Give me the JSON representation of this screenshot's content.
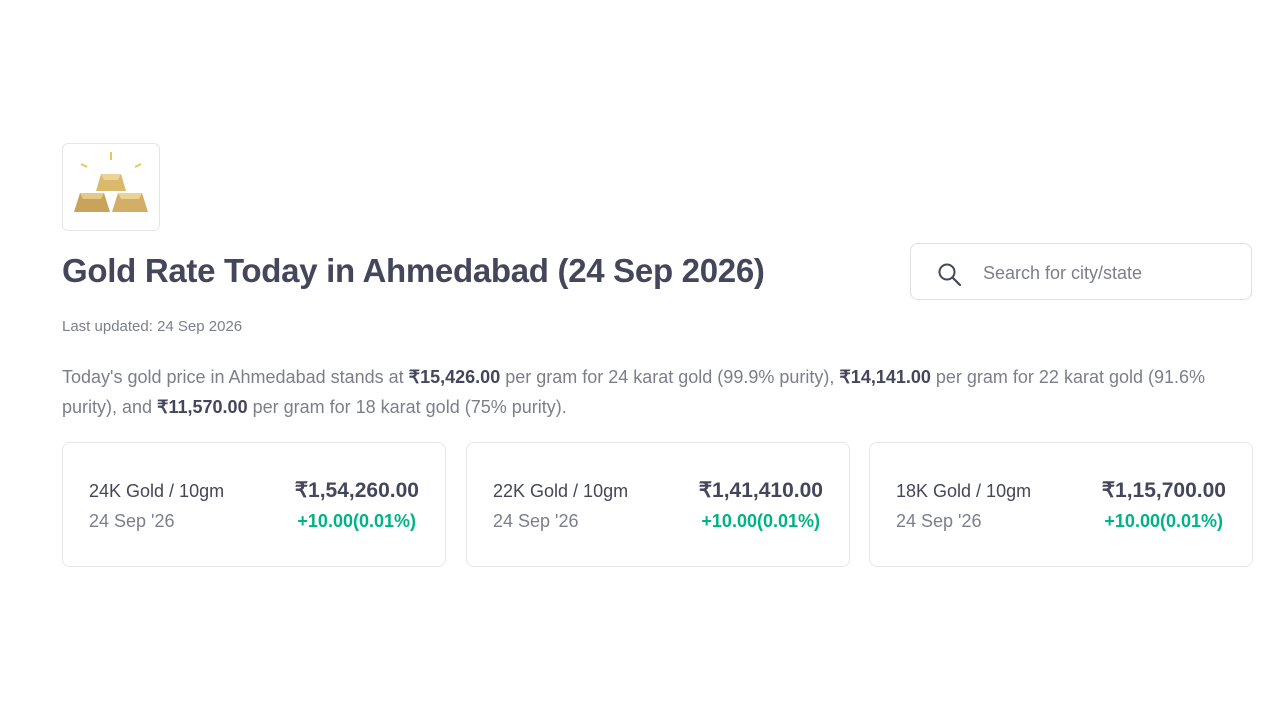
{
  "header": {
    "title": "Gold Rate Today in Ahmedabad (24 Sep 2026)",
    "last_updated": "Last updated: 24 Sep 2026"
  },
  "search": {
    "placeholder": "Search for city/state"
  },
  "description": {
    "parts": [
      {
        "text": "Today's gold price in Ahmedabad stands at ",
        "bold": false
      },
      {
        "text": "₹15,426.00",
        "bold": true
      },
      {
        "text": " per gram for 24 karat gold (99.9% purity), ",
        "bold": false
      },
      {
        "text": "₹14,141.00",
        "bold": true
      },
      {
        "text": " per gram for 22 karat gold (91.6% purity), and ",
        "bold": false
      },
      {
        "text": "₹11,570.00",
        "bold": true
      },
      {
        "text": " per gram for 18 karat gold (75% purity).",
        "bold": false
      }
    ]
  },
  "cards": [
    {
      "label": "24K Gold / 10gm",
      "date": "24 Sep '26",
      "price": "₹1,54,260.00",
      "change": "+10.00(0.01%)"
    },
    {
      "label": "22K Gold / 10gm",
      "date": "24 Sep '26",
      "price": "₹1,41,410.00",
      "change": "+10.00(0.01%)"
    },
    {
      "label": "18K Gold / 10gm",
      "date": "24 Sep '26",
      "price": "₹1,15,700.00",
      "change": "+10.00(0.01%)"
    }
  ]
}
